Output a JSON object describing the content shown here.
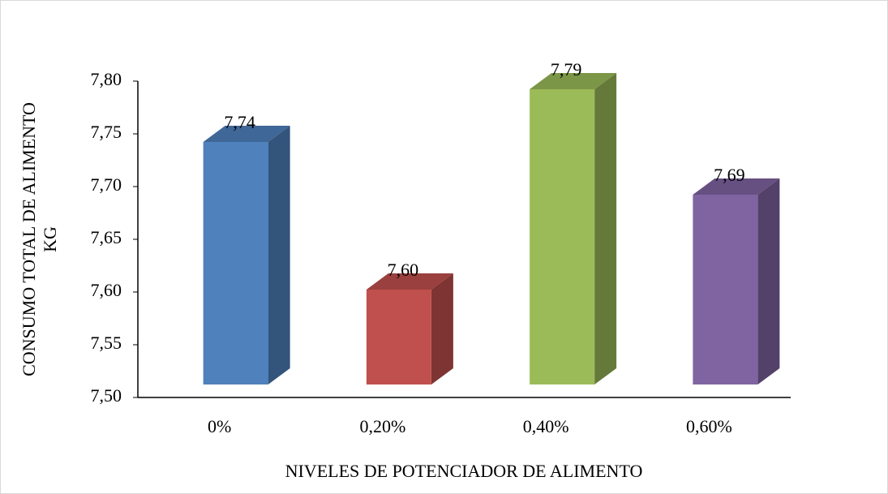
{
  "chart_data": {
    "type": "bar3d",
    "y_label": [
      "CONSUMO TOTAL DE ALIMENTO",
      "KG"
    ],
    "x_label": "NIVELES DE POTENCIADOR DE ALIMENTO",
    "categories": [
      "0%",
      "0,20%",
      "0,40%",
      "0,60%"
    ],
    "values": [
      7.74,
      7.6,
      7.79,
      7.69
    ],
    "value_labels": [
      "7,74",
      "7,60",
      "7,79",
      "7,69"
    ],
    "colors": [
      "#4f81bd",
      "#c0504d",
      "#9bbb59",
      "#8064a2"
    ],
    "ylim": [
      7.5,
      7.8
    ],
    "yticks": [
      {
        "value": 7.5,
        "label": "7,50"
      },
      {
        "value": 7.55,
        "label": "7,55"
      },
      {
        "value": 7.6,
        "label": "7,60"
      },
      {
        "value": 7.65,
        "label": "7,65"
      },
      {
        "value": 7.7,
        "label": "7,70"
      },
      {
        "value": 7.75,
        "label": "7,75"
      },
      {
        "value": 7.8,
        "label": "7,80"
      }
    ],
    "grid": false
  }
}
